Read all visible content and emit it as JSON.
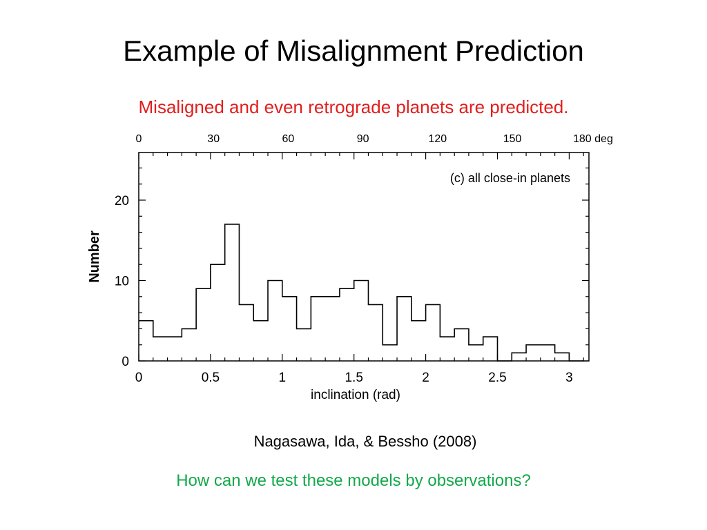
{
  "slide": {
    "title": "Example of Misalignment Prediction",
    "subtitle": "Misaligned and even retrograde planets are predicted.",
    "citation": "Nagasawa, Ida, & Bessho (2008)",
    "question": "How can we test these models by observations?"
  },
  "colors": {
    "subtitle": "#e31d1d",
    "question": "#12a84a",
    "histogram": "#000000"
  },
  "chart_data": {
    "type": "histogram",
    "annotation": "(c) all close-in planets",
    "xlabel": "inclination (rad)",
    "ylabel": "Number",
    "xlim": [
      0,
      3.15
    ],
    "ylim": [
      0,
      26
    ],
    "x_ticks": [
      "0",
      "0.5",
      "1",
      "1.5",
      "2",
      "2.5",
      "3"
    ],
    "x_tick_values": [
      0,
      0.5,
      1,
      1.5,
      2,
      2.5,
      3
    ],
    "y_ticks": [
      "0",
      "10",
      "20"
    ],
    "y_tick_values": [
      0,
      10,
      20
    ],
    "top_axis_labels": [
      "0",
      "30",
      "60",
      "90",
      "120",
      "150",
      "180 deg"
    ],
    "top_axis_values": [
      0,
      30,
      60,
      90,
      120,
      150,
      180
    ],
    "bin_width": 0.1,
    "bin_starts": [
      0.0,
      0.1,
      0.2,
      0.3,
      0.4,
      0.5,
      0.6,
      0.7,
      0.8,
      0.9,
      1.0,
      1.1,
      1.2,
      1.3,
      1.4,
      1.5,
      1.6,
      1.7,
      1.8,
      1.9,
      2.0,
      2.1,
      2.2,
      2.3,
      2.4,
      2.5,
      2.6,
      2.7,
      2.8,
      2.9,
      3.0
    ],
    "counts": [
      5,
      3,
      3,
      4,
      9,
      12,
      17,
      7,
      5,
      10,
      8,
      4,
      8,
      8,
      9,
      10,
      7,
      2,
      8,
      5,
      7,
      3,
      4,
      2,
      3,
      0,
      1,
      2,
      2,
      1,
      0
    ]
  }
}
